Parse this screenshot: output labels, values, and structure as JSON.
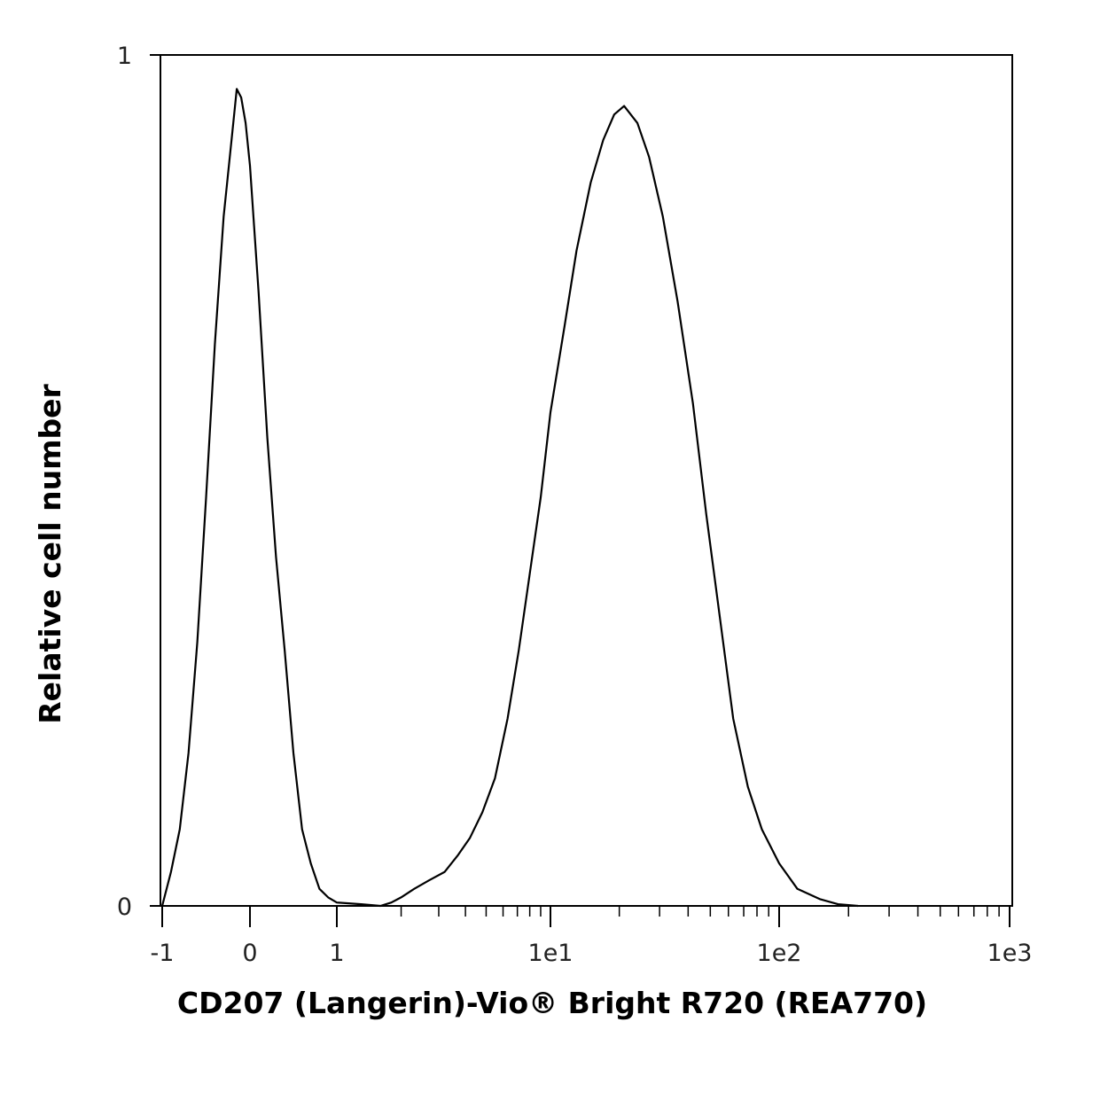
{
  "chart_data": {
    "type": "line",
    "title": "",
    "xlabel": "CD207 (Langerin)-Vio® Bright R720 (REA770)",
    "ylabel": "Relative cell number",
    "x_scale": "hyperlog",
    "xlim": [
      -1,
      1000
    ],
    "ylim": [
      0,
      1
    ],
    "x_tick_labels": [
      "-1",
      "0",
      "1",
      "1e1",
      "1e2",
      "1e3"
    ],
    "x_tick_values": [
      -1,
      0,
      1,
      10,
      100,
      1000
    ],
    "y_tick_labels": [
      "0",
      "1"
    ],
    "y_tick_values": [
      0,
      1
    ],
    "grid": false,
    "legend": "none",
    "series": [
      {
        "name": "",
        "color": "#000000",
        "points": [
          [
            -1.0,
            0.0
          ],
          [
            -0.9,
            0.04
          ],
          [
            -0.8,
            0.09
          ],
          [
            -0.7,
            0.18
          ],
          [
            -0.6,
            0.31
          ],
          [
            -0.5,
            0.48
          ],
          [
            -0.4,
            0.66
          ],
          [
            -0.3,
            0.81
          ],
          [
            -0.2,
            0.91
          ],
          [
            -0.15,
            0.96
          ],
          [
            -0.1,
            0.95
          ],
          [
            -0.05,
            0.92
          ],
          [
            0.0,
            0.87
          ],
          [
            0.1,
            0.72
          ],
          [
            0.2,
            0.55
          ],
          [
            0.3,
            0.41
          ],
          [
            0.4,
            0.3
          ],
          [
            0.5,
            0.18
          ],
          [
            0.6,
            0.09
          ],
          [
            0.7,
            0.05
          ],
          [
            0.8,
            0.02
          ],
          [
            0.9,
            0.01
          ],
          [
            1.0,
            0.004
          ],
          [
            1.3,
            0.002
          ],
          [
            1.6,
            0.0
          ],
          [
            1.8,
            0.004
          ],
          [
            2.0,
            0.01
          ],
          [
            2.3,
            0.02
          ],
          [
            2.7,
            0.03
          ],
          [
            3.2,
            0.04
          ],
          [
            3.7,
            0.06
          ],
          [
            4.2,
            0.08
          ],
          [
            4.8,
            0.11
          ],
          [
            5.5,
            0.15
          ],
          [
            6.3,
            0.22
          ],
          [
            7.1,
            0.3
          ],
          [
            8.0,
            0.39
          ],
          [
            9.0,
            0.48
          ],
          [
            10.0,
            0.58
          ],
          [
            11.5,
            0.68
          ],
          [
            13.0,
            0.77
          ],
          [
            15.0,
            0.85
          ],
          [
            17.0,
            0.9
          ],
          [
            19.0,
            0.93
          ],
          [
            21.0,
            0.94
          ],
          [
            24.0,
            0.92
          ],
          [
            27.0,
            0.88
          ],
          [
            31.0,
            0.81
          ],
          [
            36.0,
            0.71
          ],
          [
            42.0,
            0.59
          ],
          [
            48.0,
            0.46
          ],
          [
            55.0,
            0.34
          ],
          [
            63.0,
            0.22
          ],
          [
            73.0,
            0.14
          ],
          [
            84.0,
            0.09
          ],
          [
            100.0,
            0.05
          ],
          [
            120.0,
            0.02
          ],
          [
            150.0,
            0.008
          ],
          [
            180.0,
            0.002
          ],
          [
            220.0,
            0.0
          ]
        ]
      }
    ]
  }
}
